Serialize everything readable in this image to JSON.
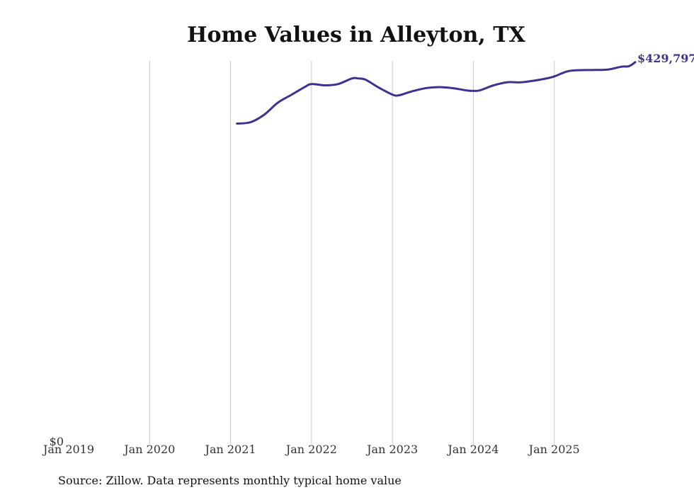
{
  "chart_data": {
    "type": "line",
    "title": "Home Values in Alleyton, TX",
    "xlabel": "",
    "ylabel": "",
    "grid": "vertical",
    "x_ticks": [
      "Jan 2019",
      "Jan 2020",
      "Jan 2021",
      "Jan 2022",
      "Jan 2023",
      "Jan 2024",
      "Jan 2025"
    ],
    "y_ticks": [
      "$0"
    ],
    "ylim": [
      0,
      440000
    ],
    "x_range_years": [
      2019.0,
      2026.0
    ],
    "series": [
      {
        "name": "Typical home value",
        "color": "#3d3290",
        "points": [
          {
            "t": 2021.08,
            "v": 360700
          },
          {
            "t": 2021.25,
            "v": 362300
          },
          {
            "t": 2021.42,
            "v": 371000
          },
          {
            "t": 2021.58,
            "v": 384000
          },
          {
            "t": 2021.75,
            "v": 393000
          },
          {
            "t": 2021.92,
            "v": 402000
          },
          {
            "t": 2022.0,
            "v": 405200
          },
          {
            "t": 2022.17,
            "v": 403700
          },
          {
            "t": 2022.33,
            "v": 405200
          },
          {
            "t": 2022.5,
            "v": 411500
          },
          {
            "t": 2022.58,
            "v": 411500
          },
          {
            "t": 2022.67,
            "v": 410000
          },
          {
            "t": 2022.83,
            "v": 401300
          },
          {
            "t": 2023.0,
            "v": 393300
          },
          {
            "t": 2023.08,
            "v": 392500
          },
          {
            "t": 2023.25,
            "v": 397200
          },
          {
            "t": 2023.42,
            "v": 400700
          },
          {
            "t": 2023.58,
            "v": 401700
          },
          {
            "t": 2023.75,
            "v": 400500
          },
          {
            "t": 2023.92,
            "v": 398000
          },
          {
            "t": 2024.0,
            "v": 397500
          },
          {
            "t": 2024.08,
            "v": 398100
          },
          {
            "t": 2024.25,
            "v": 403700
          },
          {
            "t": 2024.42,
            "v": 407200
          },
          {
            "t": 2024.58,
            "v": 407100
          },
          {
            "t": 2024.75,
            "v": 409000
          },
          {
            "t": 2024.92,
            "v": 411800
          },
          {
            "t": 2025.0,
            "v": 413800
          },
          {
            "t": 2025.17,
            "v": 419600
          },
          {
            "t": 2025.33,
            "v": 420900
          },
          {
            "t": 2025.5,
            "v": 421000
          },
          {
            "t": 2025.67,
            "v": 421600
          },
          {
            "t": 2025.83,
            "v": 424700
          },
          {
            "t": 2025.92,
            "v": 425200
          },
          {
            "t": 2026.0,
            "v": 429797
          }
        ],
        "end_label": "$429,797"
      }
    ],
    "source": "Source: Zillow. Data represents monthly typical home value"
  }
}
